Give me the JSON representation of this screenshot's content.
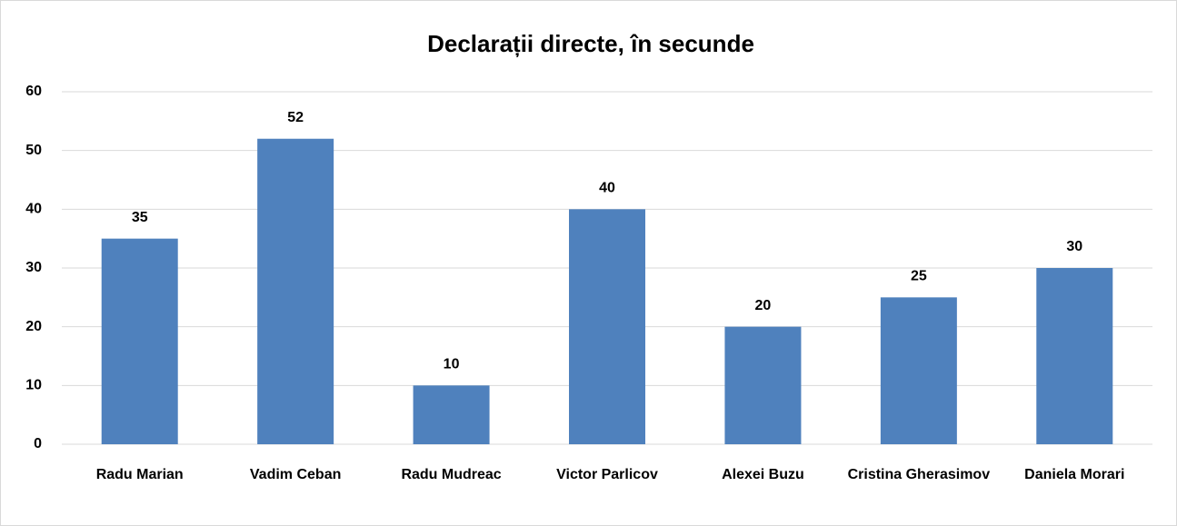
{
  "chart_data": {
    "type": "bar",
    "title": "Declarații directe, în secunde",
    "categories": [
      "Radu Marian",
      "Vadim Ceban",
      "Radu Mudreac",
      "Victor Parlicov",
      "Alexei Buzu",
      "Cristina Gherasimov",
      "Daniela Morari"
    ],
    "values": [
      35,
      52,
      10,
      40,
      20,
      25,
      30
    ],
    "color": "#4f81bd",
    "ylim": [
      0,
      60
    ],
    "yticks": [
      0,
      10,
      20,
      30,
      40,
      50,
      60
    ],
    "grid": true
  }
}
